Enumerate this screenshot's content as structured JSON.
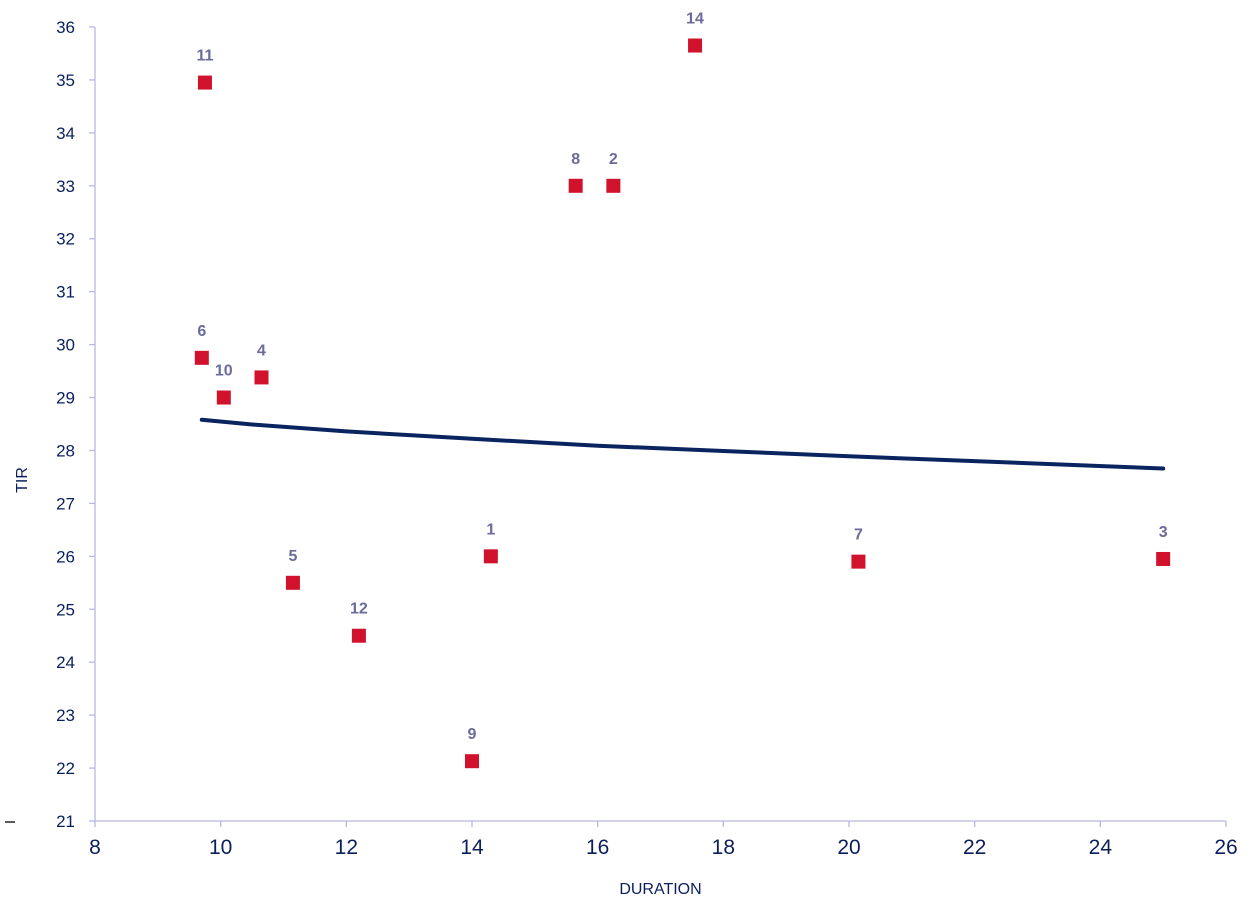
{
  "chart_data": {
    "type": "scatter",
    "title": "",
    "xlabel": "DURATION",
    "ylabel": "TIR",
    "xlim": [
      8,
      26
    ],
    "ylim": [
      21,
      36
    ],
    "x_ticks": [
      8,
      10,
      12,
      14,
      16,
      18,
      20,
      22,
      24,
      26
    ],
    "y_ticks": [
      21,
      22,
      23,
      24,
      25,
      26,
      27,
      28,
      29,
      30,
      31,
      32,
      33,
      34,
      35,
      36
    ],
    "grid": false,
    "legend": "none",
    "marker_color": "#d0122d",
    "trend_color": "#0a2460",
    "points": [
      {
        "label": "1",
        "x": 14.3,
        "y": 26.0
      },
      {
        "label": "2",
        "x": 16.25,
        "y": 33.0
      },
      {
        "label": "3",
        "x": 25.0,
        "y": 25.95
      },
      {
        "label": "4",
        "x": 10.65,
        "y": 29.38
      },
      {
        "label": "5",
        "x": 11.15,
        "y": 25.5
      },
      {
        "label": "6",
        "x": 9.7,
        "y": 29.75
      },
      {
        "label": "7",
        "x": 20.15,
        "y": 25.9
      },
      {
        "label": "8",
        "x": 15.65,
        "y": 33.0
      },
      {
        "label": "9",
        "x": 14.0,
        "y": 22.13
      },
      {
        "label": "10",
        "x": 10.05,
        "y": 29.0
      },
      {
        "label": "11",
        "x": 9.75,
        "y": 34.95
      },
      {
        "label": "12",
        "x": 12.2,
        "y": 24.5
      },
      {
        "label": "14",
        "x": 17.55,
        "y": 35.65
      }
    ],
    "trendline": {
      "type": "logarithmic",
      "x": [
        9.7,
        10.5,
        12,
        14,
        16,
        18,
        20,
        22,
        25
      ],
      "y": [
        28.58,
        28.49,
        28.36,
        28.22,
        28.09,
        27.99,
        27.89,
        27.8,
        27.66
      ]
    }
  }
}
